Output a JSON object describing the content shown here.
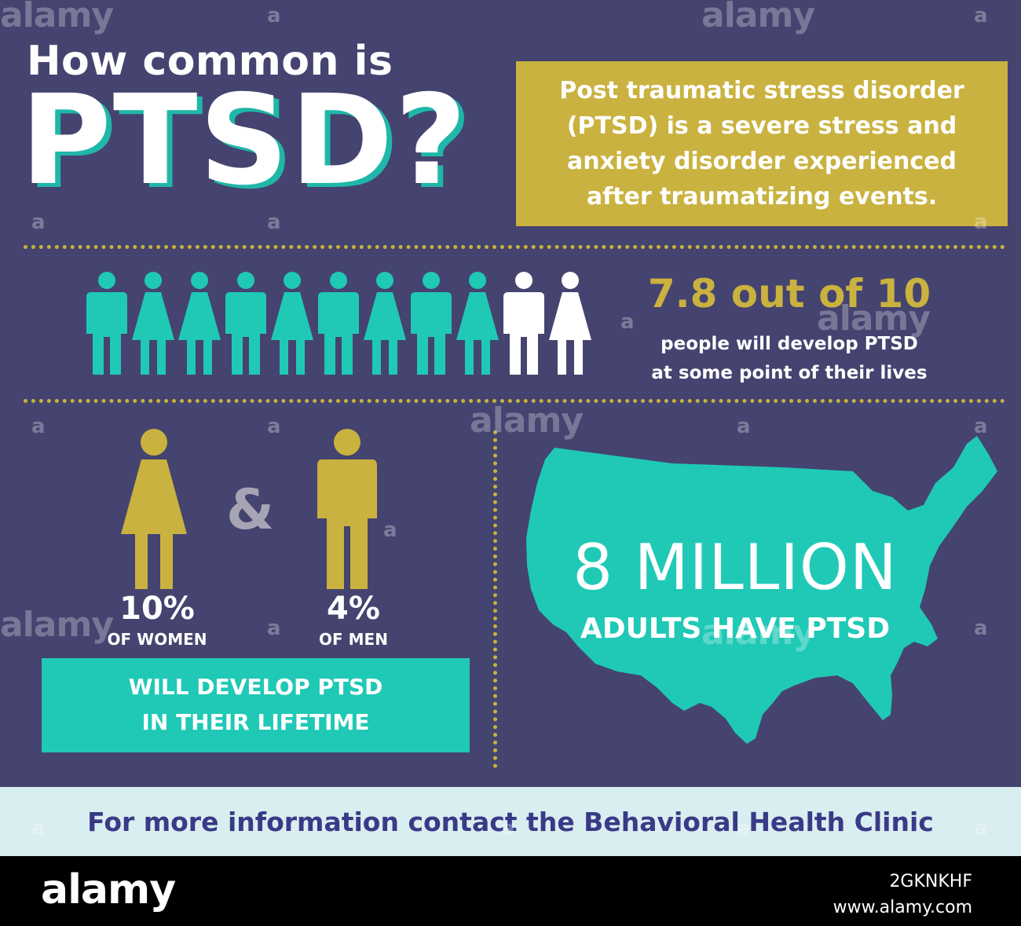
{
  "header": {
    "title_small": "How common is",
    "title_big": "PTSD?"
  },
  "definition": {
    "text": "Post traumatic stress disorder (PTSD) is a severe stress and anxiety disorder experienced after traumatizing events."
  },
  "people_stat": {
    "headline": "7.8 out of 10",
    "line1": "people will develop PTSD",
    "line2": "at some point of their lives",
    "icons": [
      "male",
      "female",
      "female",
      "male",
      "female",
      "male",
      "female",
      "male",
      "female",
      "male",
      "female"
    ],
    "highlighted_count": 9,
    "total_count": 11
  },
  "gender": {
    "ampersand": "&",
    "women_pct": "10%",
    "women_label": "OF WOMEN",
    "men_pct": "4%",
    "men_label": "OF MEN",
    "box_line1": "WILL DEVELOP PTSD",
    "box_line2": "IN THEIR LIFETIME"
  },
  "map_stat": {
    "number": "8 MILLION",
    "label": "ADULTS HAVE PTSD"
  },
  "footer": {
    "text": "For more information contact the Behavioral Health Clinic"
  },
  "watermark": {
    "brand": "alamy",
    "small_mark": "a",
    "image_id": "2GKNKHF",
    "site": "www.alamy.com"
  },
  "colors": {
    "background": "#45436f",
    "gold": "#c9b23f",
    "teal": "#1fc9b6",
    "white": "#ffffff",
    "footer_bg": "#d9eef0",
    "footer_text": "#393a87"
  },
  "icon_names": [
    "male-person-icon",
    "female-person-icon",
    "usa-map-icon"
  ]
}
